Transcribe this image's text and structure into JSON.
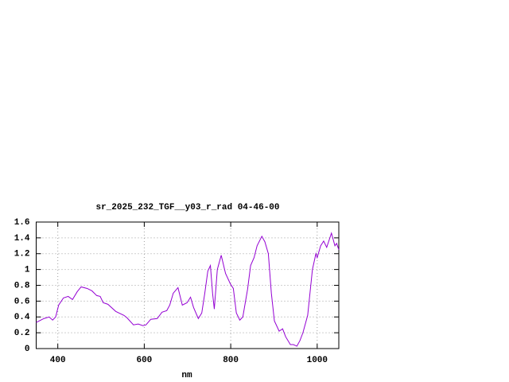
{
  "chart_data": {
    "type": "line",
    "title": "sr_2025_232_TGF__y03_r_rad 04-46-00",
    "x_label": "nm",
    "x": [
      350,
      368,
      380,
      388,
      395,
      402,
      413,
      424,
      434,
      445,
      454,
      468,
      479,
      490,
      498,
      505,
      516,
      534,
      553,
      560,
      575,
      586,
      597,
      604,
      615,
      630,
      641,
      652,
      659,
      667,
      678,
      688,
      699,
      707,
      714,
      725,
      733,
      740,
      747,
      753,
      758,
      762,
      769,
      778,
      788,
      799,
      806,
      813,
      821,
      828,
      839,
      846,
      854,
      861,
      872,
      879,
      887,
      894,
      901,
      912,
      920,
      927,
      938,
      945,
      953,
      960,
      967,
      978,
      989,
      997,
      1000,
      1008,
      1015,
      1022,
      1033,
      1041,
      1045,
      1050
    ],
    "series": [
      {
        "color": "#9400d3",
        "values": [
          0.33,
          0.38,
          0.4,
          0.36,
          0.4,
          0.55,
          0.64,
          0.66,
          0.62,
          0.72,
          0.78,
          0.76,
          0.73,
          0.67,
          0.66,
          0.58,
          0.56,
          0.47,
          0.42,
          0.39,
          0.3,
          0.31,
          0.29,
          0.3,
          0.37,
          0.38,
          0.46,
          0.48,
          0.55,
          0.7,
          0.77,
          0.55,
          0.58,
          0.65,
          0.52,
          0.38,
          0.45,
          0.7,
          0.98,
          1.05,
          0.7,
          0.5,
          1.0,
          1.18,
          0.95,
          0.82,
          0.76,
          0.45,
          0.36,
          0.4,
          0.75,
          1.05,
          1.15,
          1.3,
          1.42,
          1.35,
          1.2,
          0.7,
          0.35,
          0.22,
          0.25,
          0.15,
          0.05,
          0.05,
          0.03,
          0.1,
          0.2,
          0.42,
          1.0,
          1.2,
          1.15,
          1.3,
          1.36,
          1.28,
          1.46,
          1.3,
          1.33,
          1.25
        ]
      }
    ],
    "xlim": [
      350,
      1050
    ],
    "xticks": [
      400,
      600,
      800,
      1000
    ],
    "ylim": [
      0,
      1.6
    ],
    "yticks": [
      0,
      0.2,
      0.4,
      0.6,
      0.8,
      1,
      1.2,
      1.4,
      1.6
    ],
    "grid": true
  }
}
